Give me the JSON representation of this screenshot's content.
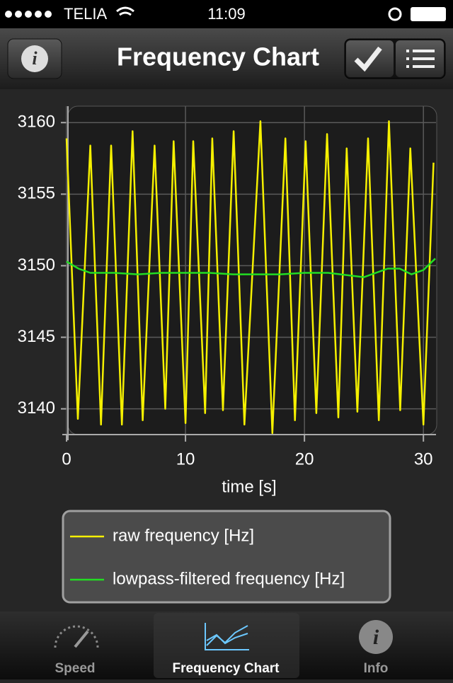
{
  "status_bar": {
    "carrier": "TELIA",
    "time": "11:09"
  },
  "nav_bar": {
    "title": "Frequency Chart"
  },
  "chart_data": {
    "type": "line",
    "xlabel": "time [s]",
    "xlim": [
      0,
      31
    ],
    "ylim": [
      3138.3,
      3161
    ],
    "xticks": [
      0,
      10,
      20,
      30
    ],
    "yticks": [
      3140,
      3145,
      3150,
      3155,
      3160
    ],
    "grid": true,
    "legend": "bottom",
    "series": [
      {
        "name": "raw frequency [Hz]",
        "color": "#f5f000",
        "x": [
          0,
          0.95,
          2.0,
          2.9,
          3.75,
          4.65,
          5.55,
          6.4,
          7.4,
          8.3,
          9.0,
          10.0,
          10.65,
          11.65,
          12.25,
          13.15,
          14.05,
          14.95,
          16.3,
          17.3,
          18.4,
          19.2,
          20.1,
          21.0,
          21.9,
          22.85,
          23.55,
          24.45,
          25.35,
          26.25,
          27.1,
          28.05,
          28.9,
          30.0,
          30.85
        ],
        "values": [
          3158.9,
          3139.3,
          3158.4,
          3138.9,
          3158.4,
          3138.9,
          3159.4,
          3139.2,
          3158.4,
          3140,
          3158.7,
          3139,
          3158.7,
          3139.7,
          3158.9,
          3139.9,
          3159.4,
          3138.9,
          3160.1,
          3138.3,
          3158.9,
          3139.2,
          3158.7,
          3139.7,
          3159.2,
          3139.4,
          3158.2,
          3139.8,
          3158.9,
          3139.2,
          3160.1,
          3139.9,
          3158.2,
          3138.9,
          3157.2
        ]
      },
      {
        "name": "lowpass-filtered frequency [Hz]",
        "color": "#22dd22",
        "x": [
          0,
          1,
          2,
          4,
          6,
          8,
          10,
          12,
          14,
          16,
          18,
          20,
          22,
          24,
          25,
          26,
          27,
          28,
          29,
          30,
          31
        ],
        "values": [
          3150.3,
          3149.8,
          3149.5,
          3149.5,
          3149.4,
          3149.5,
          3149.5,
          3149.5,
          3149.4,
          3149.4,
          3149.4,
          3149.5,
          3149.5,
          3149.3,
          3149.2,
          3149.5,
          3149.8,
          3149.8,
          3149.4,
          3149.7,
          3150.5
        ]
      }
    ]
  },
  "tab_bar": {
    "items": [
      "Speed",
      "Frequency Chart",
      "Info"
    ]
  }
}
